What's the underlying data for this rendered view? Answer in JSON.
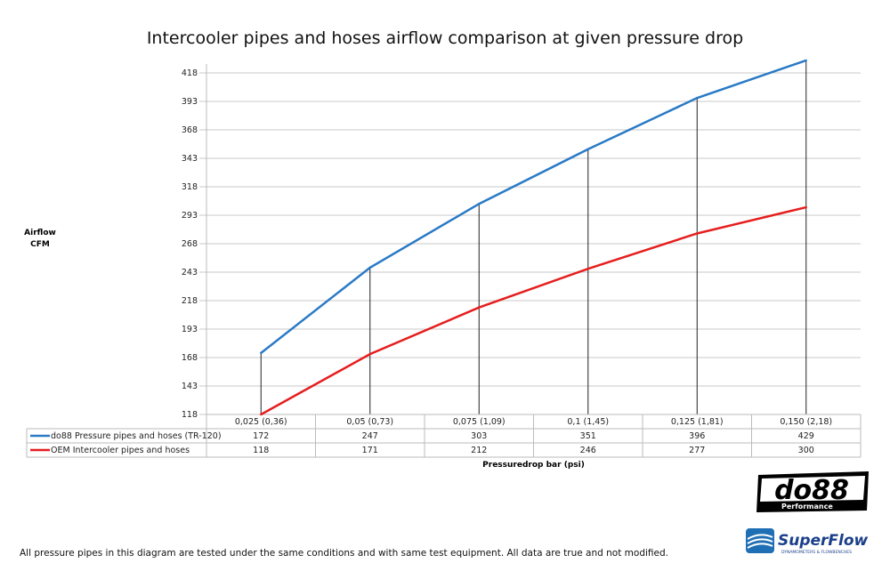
{
  "chart_data": {
    "type": "line",
    "title": "Intercooler pipes and hoses airflow comparison at given pressure drop",
    "ylabel": "Airflow CFM",
    "ylabel_lines": [
      "Airflow",
      "CFM"
    ],
    "xlabel": "Pressuredrop bar (psi)",
    "categories": [
      "0,025 (0,36)",
      "0,05 (0,73)",
      "0,075 (1,09)",
      "0,1 (1,45)",
      "0,125 (1,81)",
      "0,150 (2,18)"
    ],
    "yticks": [
      118,
      143,
      168,
      193,
      218,
      243,
      268,
      293,
      318,
      343,
      368,
      393,
      418
    ],
    "ylim": [
      118,
      430
    ],
    "grid": true,
    "legend": "data-table",
    "series": [
      {
        "name": "do88 Pressure pipes and hoses (TR-120)",
        "color": "#2a7ac6",
        "values": [
          172,
          247,
          303,
          351,
          396,
          429
        ]
      },
      {
        "name": "OEM Intercooler pipes and hoses",
        "color": "#e61e1e",
        "values": [
          118,
          171,
          212,
          246,
          277,
          300
        ]
      }
    ]
  },
  "footer": "All pressure pipes in this diagram are tested under the same conditions and with same test equipment. All data are true and not modified.",
  "logos": {
    "do88": "do88",
    "do88_sub": "Performance",
    "superflow": "SuperFlow",
    "superflow_sub": "DYNAMOMETERS & FLOWBENCHES"
  }
}
